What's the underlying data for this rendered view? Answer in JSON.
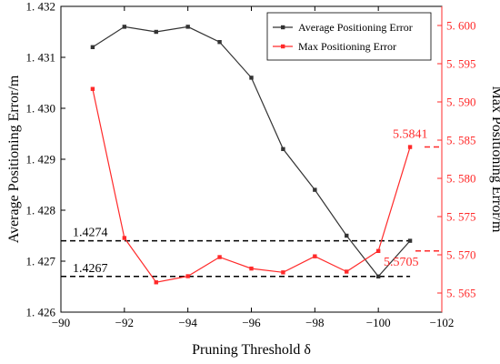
{
  "chart_data": {
    "type": "line",
    "xlabel": "Pruning Threshold δ",
    "ylabel_left": "Average Positioning Error/m",
    "ylabel_right": "Max Positioning Error/m",
    "xlim": [
      -90,
      -102
    ],
    "ylim_left": [
      1.426,
      1.432
    ],
    "ylim_right": [
      5.5625,
      5.6025
    ],
    "x_ticks": [
      -90,
      -92,
      -94,
      -96,
      -98,
      -100,
      -102
    ],
    "x_tick_labels": [
      "−90",
      "−92",
      "−94",
      "−96",
      "−98",
      "−100",
      "−102"
    ],
    "y_left_ticks": [
      1.426,
      1.427,
      1.428,
      1.429,
      1.43,
      1.431,
      1.432
    ],
    "y_left_tick_labels": [
      "1. 426",
      "1. 427",
      "1. 428",
      "1. 429",
      "1. 430",
      "1. 431",
      "1. 432"
    ],
    "y_right_ticks": [
      5.565,
      5.57,
      5.575,
      5.58,
      5.585,
      5.59,
      5.595,
      5.6
    ],
    "y_right_tick_labels": [
      "5. 565",
      "5. 570",
      "5. 575",
      "5. 580",
      "5. 585",
      "5. 590",
      "5. 595",
      "5. 600"
    ],
    "series": [
      {
        "name": "Average Positioning Error",
        "axis": "left",
        "color": "#333333",
        "marker": "square",
        "x": [
          -91,
          -92,
          -93,
          -94,
          -95,
          -96,
          -97,
          -98,
          -99,
          -100,
          -101
        ],
        "y": [
          1.4312,
          1.4316,
          1.4315,
          1.4316,
          1.4313,
          1.4306,
          1.4292,
          1.4284,
          1.4275,
          1.4267,
          1.4274
        ]
      },
      {
        "name": "Max Positioning Error",
        "axis": "right",
        "color": "#ff2a2a",
        "marker": "square",
        "x": [
          -91,
          -92,
          -93,
          -94,
          -95,
          -96,
          -97,
          -98,
          -99,
          -100,
          -101
        ],
        "y": [
          5.5917,
          5.5722,
          5.5664,
          5.5672,
          5.5697,
          5.5682,
          5.5677,
          5.5698,
          5.5678,
          5.5705,
          5.5841
        ]
      }
    ],
    "reference_lines": [
      {
        "axis": "left",
        "value": 1.4274,
        "label": "1.4274",
        "color": "#000000",
        "style": "dashed"
      },
      {
        "axis": "left",
        "value": 1.4267,
        "label": "1.4267",
        "color": "#000000",
        "style": "dashed"
      },
      {
        "axis": "right",
        "value": 5.5841,
        "label": "5.5841",
        "color": "#ff2a2a",
        "style": "dashed"
      },
      {
        "axis": "right",
        "value": 5.5705,
        "label": "5.5705",
        "color": "#ff2a2a",
        "style": "dashed"
      }
    ],
    "legend": {
      "placement": "top-right"
    },
    "grid": false
  }
}
